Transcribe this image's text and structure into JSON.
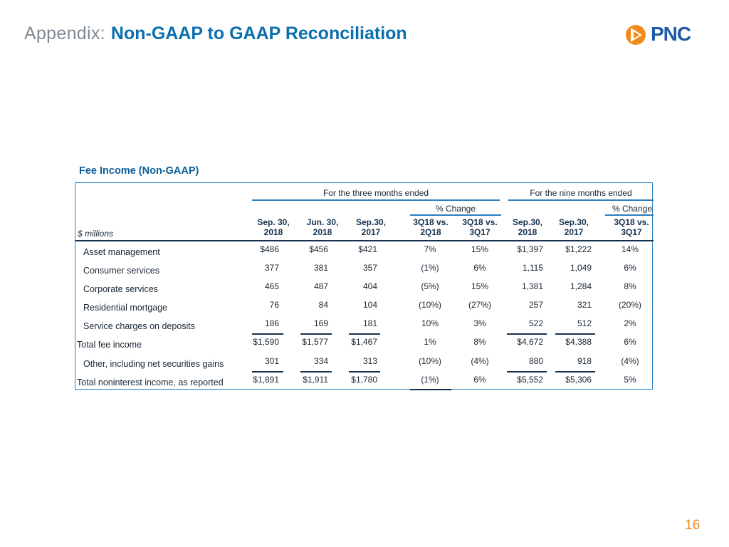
{
  "header": {
    "prefix": "Appendix:",
    "title": "Non-GAAP to GAAP Reconciliation",
    "logo_text": "PNC"
  },
  "section_title": "Fee Income (Non-GAAP)",
  "table": {
    "units_label": "$ millions",
    "group_three_months": "For the three months ended",
    "group_nine_months": "For the nine months ended",
    "pct_change_label_1": "% Change",
    "pct_change_label_2": "% Change",
    "columns": [
      {
        "line1": "Sep. 30,",
        "line2": "2018"
      },
      {
        "line1": "Jun. 30,",
        "line2": "2018"
      },
      {
        "line1": "Sep.30,",
        "line2": "2017"
      },
      {
        "line1": "3Q18 vs.",
        "line2": "2Q18"
      },
      {
        "line1": "3Q18 vs.",
        "line2": "3Q17"
      },
      {
        "line1": "Sep.30,",
        "line2": "2018"
      },
      {
        "line1": "Sep.30,",
        "line2": "2017"
      },
      {
        "line1": "3Q18 vs.",
        "line2": "3Q17"
      }
    ],
    "rows": [
      {
        "label": "Asset management",
        "values": [
          "$486",
          "$456",
          "$421",
          "7%",
          "15%",
          "$1,397",
          "$1,222",
          "14%"
        ]
      },
      {
        "label": "Consumer services",
        "values": [
          "377",
          "381",
          "357",
          "(1%)",
          "6%",
          "1,115",
          "1,049",
          "6%"
        ]
      },
      {
        "label": "Corporate services",
        "values": [
          "465",
          "487",
          "404",
          "(5%)",
          "15%",
          "1,381",
          "1,284",
          "8%"
        ]
      },
      {
        "label": "Residential mortgage",
        "values": [
          "76",
          "84",
          "104",
          "(10%)",
          "(27%)",
          "257",
          "321",
          "(20%)"
        ]
      },
      {
        "label": "Service charges on deposits",
        "values": [
          "186",
          "169",
          "181",
          "10%",
          "3%",
          "522",
          "512",
          "2%"
        ]
      },
      {
        "label": "Total fee income",
        "values": [
          "$1,590",
          "$1,577",
          "$1,467",
          "1%",
          "8%",
          "$4,672",
          "$4,388",
          "6%"
        ]
      },
      {
        "label": "Other, including net securities gains",
        "values": [
          "301",
          "334",
          "313",
          "(10%)",
          "(4%)",
          "880",
          "918",
          "(4%)"
        ]
      },
      {
        "label": "Total noninterest income, as reported",
        "values": [
          "$1,891",
          "$1,911",
          "$1,780",
          "(1%)",
          "6%",
          "$5,552",
          "$5,306",
          "5%"
        ]
      }
    ]
  },
  "page_number": "16",
  "colors": {
    "brand_blue": "#0a6fae",
    "accent_orange": "#f08a1c",
    "table_border": "#2b7fc0"
  }
}
